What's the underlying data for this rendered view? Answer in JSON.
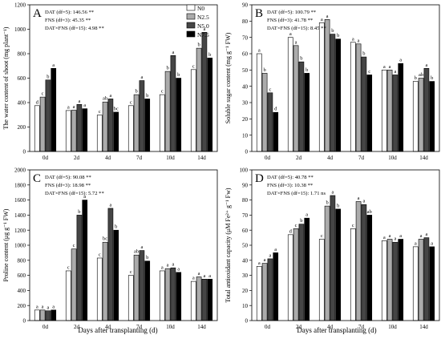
{
  "figure": {
    "x_title": "Days after transplanting (d)",
    "legend": [
      "N0",
      "N2.5",
      "N5.0",
      "N7.5"
    ],
    "series_colors": [
      "#ffffff",
      "#ababab",
      "#454545",
      "#000000"
    ]
  },
  "chart_data": [
    {
      "type": "bar",
      "panel": "A",
      "ylabel": "The water content of shoot (mg plant⁻¹)",
      "xlabel": "Days after transplanting (d)",
      "categories": [
        "0d",
        "2d",
        "4d",
        "7d",
        "10d",
        "14d"
      ],
      "ylim": [
        0,
        1200
      ],
      "yticks": [
        0,
        200,
        400,
        600,
        800,
        1000,
        1200
      ],
      "stats": [
        "DAT (df=5): 146.56 **",
        "FNS (df=3): 45.35 **",
        "DAT×FNS (df=15): 4.98 **"
      ],
      "series": [
        {
          "name": "N0",
          "values": [
            375,
            335,
            298,
            375,
            465,
            670
          ],
          "letters": [
            "d",
            "a",
            "c",
            "c",
            "c",
            "c"
          ]
        },
        {
          "name": "N2.5",
          "values": [
            445,
            338,
            405,
            465,
            655,
            845
          ],
          "letters": [
            "c",
            "a",
            "ab",
            "b",
            "b",
            "b"
          ]
        },
        {
          "name": "N5.0",
          "values": [
            585,
            385,
            430,
            580,
            785,
            975
          ],
          "letters": [
            "b",
            "a",
            "a",
            "a",
            "a",
            "a"
          ]
        },
        {
          "name": "N7.5",
          "values": [
            680,
            350,
            322,
            430,
            600,
            765
          ],
          "letters": [
            "a",
            "a",
            "bc",
            "b",
            "b",
            "b"
          ]
        }
      ]
    },
    {
      "type": "bar",
      "panel": "B",
      "ylabel": "Soluble sugar content (mg g⁻¹ FW)",
      "xlabel": "Days after transplanting (d)",
      "categories": [
        "0d",
        "2d",
        "4d",
        "7d",
        "10d",
        "14d"
      ],
      "ylim": [
        0,
        90
      ],
      "yticks": [
        0,
        10,
        20,
        30,
        40,
        50,
        60,
        70,
        80,
        90
      ],
      "stats": [
        "DAT (df=5): 100.79 **",
        "FNS (df=3): 41.78 **",
        "DAT×FNS (df=15): 8.45 **"
      ],
      "series": [
        {
          "name": "N0",
          "values": [
            60,
            70,
            79,
            67,
            50,
            43
          ],
          "letters": [
            "a",
            "a",
            "a",
            "a",
            "a",
            "b"
          ]
        },
        {
          "name": "N2.5",
          "values": [
            48,
            65,
            81,
            66,
            50,
            45
          ],
          "letters": [
            "b",
            "a",
            "a",
            "a",
            "a",
            "ab"
          ]
        },
        {
          "name": "N5.0",
          "values": [
            36,
            55,
            72,
            58,
            47,
            51
          ],
          "letters": [
            "c",
            "b",
            "b",
            "b",
            "a",
            "a"
          ]
        },
        {
          "name": "N7.5",
          "values": [
            24,
            48,
            69,
            47,
            54,
            43
          ],
          "letters": [
            "d",
            "b",
            "b",
            "c",
            "a",
            "b"
          ]
        }
      ]
    },
    {
      "type": "bar",
      "panel": "C",
      "ylabel": "Proline content (μg g⁻¹ FW)",
      "xlabel": "Days after transplanting (d)",
      "categories": [
        "0d",
        "2d",
        "4d",
        "7d",
        "10d",
        "14d"
      ],
      "ylim": [
        0,
        2000
      ],
      "yticks": [
        0,
        200,
        400,
        600,
        800,
        1000,
        1200,
        1400,
        1600,
        1800,
        2000
      ],
      "stats": [
        "DAT (df=5): 90.08 **",
        "FNS (df=3): 18.98 **",
        "DAT×FNS (df=15): 5.72 **"
      ],
      "series": [
        {
          "name": "N0",
          "values": [
            140,
            660,
            830,
            600,
            660,
            520
          ],
          "letters": [
            "a",
            "c",
            "c",
            "c",
            "a",
            "a"
          ]
        },
        {
          "name": "N2.5",
          "values": [
            140,
            950,
            1040,
            870,
            690,
            580
          ],
          "letters": [
            "a",
            "c",
            "bc",
            "ab",
            "a",
            "a"
          ]
        },
        {
          "name": "N5.0",
          "values": [
            130,
            1400,
            1490,
            930,
            700,
            550
          ],
          "letters": [
            "a",
            "b",
            "a",
            "a",
            "a",
            "a"
          ]
        },
        {
          "name": "N7.5",
          "values": [
            140,
            1600,
            1200,
            790,
            640,
            550
          ],
          "letters": [
            "a",
            "a",
            "b",
            "b",
            "a",
            "a"
          ]
        }
      ]
    },
    {
      "type": "bar",
      "panel": "D",
      "ylabel": "Total antioxidant capacity (μM Fe²⁺ g⁻¹ Fw)",
      "xlabel": "Days after transplanting (d)",
      "categories": [
        "0d",
        "2d",
        "4d",
        "7d",
        "10d",
        "14d"
      ],
      "ylim": [
        0,
        100
      ],
      "yticks": [
        0,
        10,
        20,
        30,
        40,
        50,
        60,
        70,
        80,
        90,
        100
      ],
      "stats": [
        "DAT (df=5): 40.78 **",
        "FNS (df=3): 10.38 **",
        "DAT×FNS (df=15): 1.71 ns"
      ],
      "series": [
        {
          "name": "N0",
          "values": [
            36,
            57,
            54,
            61,
            53,
            49
          ],
          "letters": [
            "a",
            "d",
            "c",
            "c",
            "a",
            "a"
          ]
        },
        {
          "name": "N2.5",
          "values": [
            38,
            61,
            76,
            79,
            54,
            54
          ],
          "letters": [
            "a",
            "c",
            "b",
            "a",
            "a",
            "a"
          ]
        },
        {
          "name": "N5.0",
          "values": [
            41,
            64,
            83,
            77,
            52,
            55
          ],
          "letters": [
            "a",
            "b",
            "a",
            "a",
            "a",
            "a"
          ]
        },
        {
          "name": "N7.5",
          "values": [
            45,
            68,
            74,
            70,
            54,
            49
          ],
          "letters": [
            "a",
            "a",
            "b",
            "ab",
            "a",
            "a"
          ]
        }
      ]
    }
  ]
}
